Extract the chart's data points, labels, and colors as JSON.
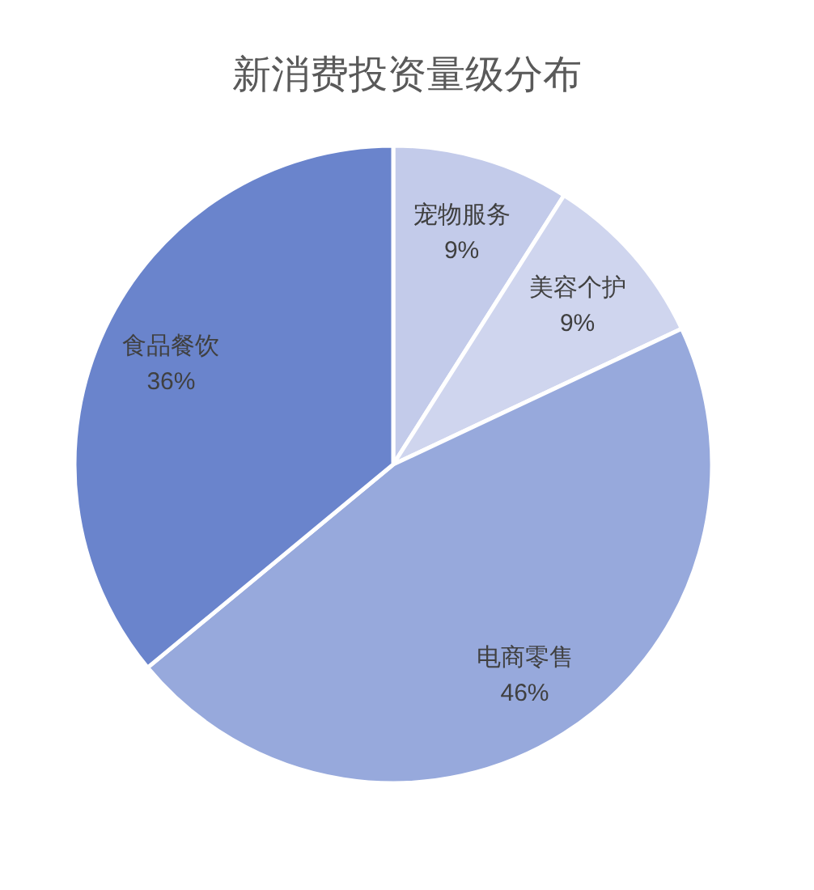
{
  "chart_data": {
    "type": "pie",
    "title": "新消费投资量级分布",
    "categories": [
      "宠物服务",
      "美容个护",
      "电商零售",
      "食品餐饮"
    ],
    "values": [
      9,
      9,
      46,
      36
    ],
    "colors": [
      "#c3cbea",
      "#cfd5ee",
      "#97a9dc",
      "#6a84cc"
    ],
    "value_labels": [
      "9%",
      "9%",
      "46%",
      "36%"
    ]
  }
}
